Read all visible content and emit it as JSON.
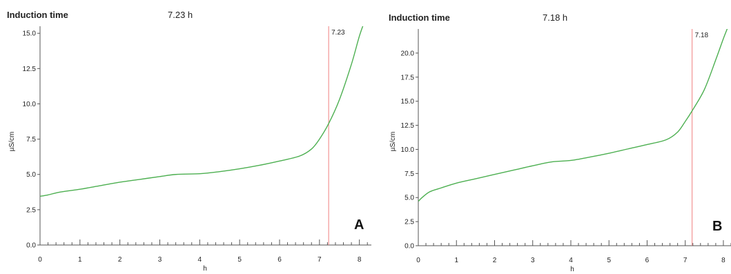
{
  "chart_data": [
    {
      "type": "line",
      "header_label": "Induction time",
      "header_value": "7.23 h",
      "xlabel": "h",
      "ylabel": "µS/cm",
      "xlim": [
        0,
        8.3
      ],
      "ylim": [
        0,
        15.5
      ],
      "x_ticks": [
        "0",
        "1",
        "2",
        "3",
        "4",
        "5",
        "6",
        "7",
        "8"
      ],
      "y_ticks": [
        "0.0",
        "2.5",
        "5.0",
        "7.5",
        "10.0",
        "12.5",
        "15.0"
      ],
      "induction_marker": {
        "x": 7.23,
        "label": "7.23"
      },
      "panel_letter": "A",
      "colors": {
        "curve": "#4caf50",
        "marker": "#f08080",
        "axis": "#555555"
      },
      "series": [
        {
          "x": [
            0,
            0.2,
            0.5,
            1.0,
            1.5,
            2.0,
            2.5,
            3.0,
            3.4,
            4.0,
            4.5,
            5.0,
            5.5,
            6.0,
            6.5,
            6.8,
            7.0,
            7.23,
            7.5,
            7.8,
            8.0,
            8.15
          ],
          "y": [
            3.45,
            3.55,
            3.75,
            3.95,
            4.2,
            4.45,
            4.65,
            4.85,
            5.0,
            5.05,
            5.2,
            5.4,
            5.65,
            5.95,
            6.3,
            6.8,
            7.5,
            8.6,
            10.3,
            12.8,
            14.8,
            16.0
          ]
        }
      ]
    },
    {
      "type": "line",
      "header_label": "Induction time",
      "header_value": "7.18 h",
      "xlabel": "h",
      "ylabel": "µS/cm",
      "xlim": [
        0,
        8.2
      ],
      "ylim": [
        0,
        22.5
      ],
      "x_ticks": [
        "0",
        "1",
        "2",
        "3",
        "4",
        "5",
        "6",
        "7",
        "8"
      ],
      "y_ticks": [
        "0.0",
        "2.5",
        "5.0",
        "7.5",
        "10.0",
        "12.5",
        "15.0",
        "17.5",
        "20.0"
      ],
      "induction_marker": {
        "x": 7.18,
        "label": "7.18"
      },
      "panel_letter": "B",
      "colors": {
        "curve": "#4caf50",
        "marker": "#f08080",
        "axis": "#555555"
      },
      "series": [
        {
          "x": [
            0,
            0.1,
            0.3,
            0.6,
            1.0,
            1.5,
            2.0,
            2.5,
            3.0,
            3.5,
            4.0,
            4.5,
            5.0,
            5.5,
            6.0,
            6.5,
            6.8,
            7.0,
            7.18,
            7.5,
            7.8,
            8.0,
            8.15
          ],
          "y": [
            4.6,
            5.0,
            5.6,
            6.0,
            6.5,
            6.95,
            7.4,
            7.85,
            8.3,
            8.7,
            8.85,
            9.2,
            9.6,
            10.05,
            10.5,
            11.0,
            11.8,
            12.9,
            14.0,
            16.2,
            19.3,
            21.5,
            23.0
          ]
        }
      ]
    }
  ]
}
